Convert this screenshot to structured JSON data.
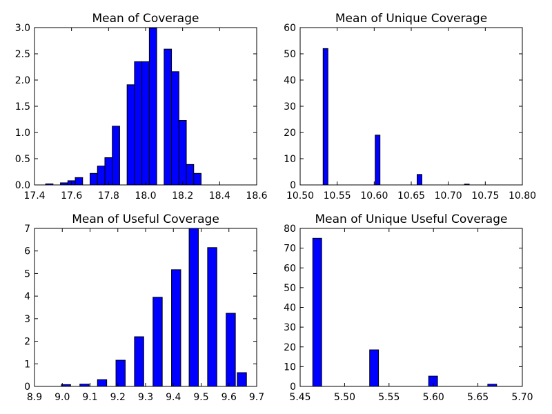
{
  "chart_data": [
    {
      "type": "bar",
      "title": "Mean of Coverage",
      "xlim": [
        17.4,
        18.6
      ],
      "ylim": [
        0,
        3.0
      ],
      "xticks": [
        17.4,
        17.6,
        17.8,
        18.0,
        18.2,
        18.4,
        18.6
      ],
      "xtick_labels": [
        "17.4",
        "17.6",
        "17.8",
        "18.0",
        "18.2",
        "18.4",
        "18.6"
      ],
      "yticks": [
        0,
        0.5,
        1.0,
        1.5,
        2.0,
        2.5,
        3.0
      ],
      "ytick_labels": [
        "0.0",
        "0.5",
        "1.0",
        "1.5",
        "2.0",
        "2.5",
        "3.0"
      ],
      "bin_width": 0.04,
      "bin_starts": [
        17.46,
        17.5,
        17.54,
        17.58,
        17.62,
        17.66,
        17.7,
        17.74,
        17.78,
        17.82,
        17.86,
        17.9,
        17.94,
        17.98,
        18.02,
        18.06,
        18.1,
        18.14,
        18.18,
        18.22,
        18.26,
        18.3,
        18.34,
        18.38,
        18.42,
        18.46,
        18.5
      ],
      "values": [
        0.02,
        0,
        0.04,
        0.08,
        0.14,
        0,
        0.22,
        0.36,
        0.52,
        1.12,
        0,
        1.91,
        2.35,
        2.35,
        2.99,
        0,
        2.59,
        2.16,
        1.23,
        0.39,
        0.22,
        0,
        0,
        0,
        0,
        0,
        0
      ],
      "xlabel": "",
      "ylabel": ""
    },
    {
      "type": "bar",
      "title": "Mean of Unique Coverage",
      "xlim": [
        10.5,
        10.8
      ],
      "ylim": [
        0,
        60
      ],
      "xticks": [
        10.5,
        10.55,
        10.6,
        10.65,
        10.7,
        10.75,
        10.8
      ],
      "xtick_labels": [
        "10.50",
        "10.55",
        "10.60",
        "10.65",
        "10.70",
        "10.75",
        "10.80"
      ],
      "yticks": [
        0,
        10,
        20,
        30,
        40,
        50,
        60
      ],
      "ytick_labels": [
        "0",
        "10",
        "20",
        "30",
        "40",
        "50",
        "60"
      ],
      "bin_width": 0.0065,
      "bin_starts": [
        10.531,
        10.6013,
        10.6579,
        10.7218
      ],
      "values": [
        52,
        19,
        4,
        0.3
      ],
      "xlabel": "",
      "ylabel": ""
    },
    {
      "type": "bar",
      "title": "Mean of Useful Coverage",
      "xlim": [
        8.9,
        9.7
      ],
      "ylim": [
        0,
        7
      ],
      "xticks": [
        8.9,
        9.0,
        9.1,
        9.2,
        9.3,
        9.4,
        9.5,
        9.6,
        9.7
      ],
      "xtick_labels": [
        "8.9",
        "9.0",
        "9.1",
        "9.2",
        "9.3",
        "9.4",
        "9.5",
        "9.6",
        "9.7"
      ],
      "yticks": [
        0,
        1,
        2,
        3,
        4,
        5,
        6,
        7
      ],
      "ytick_labels": [
        "0",
        "1",
        "2",
        "3",
        "4",
        "5",
        "6",
        "7"
      ],
      "bin_width": 0.0333,
      "bin_starts": [
        8.9967,
        9.0633,
        9.1267,
        9.1933,
        9.26,
        9.3267,
        9.3933,
        9.4567,
        9.5233,
        9.59,
        9.63
      ],
      "values": [
        0.08,
        0.1,
        0.3,
        1.16,
        2.2,
        3.95,
        5.17,
        7.0,
        6.15,
        3.24,
        0.61
      ],
      "xlabel": "",
      "ylabel": ""
    },
    {
      "type": "bar",
      "title": "Mean of Unique Useful Coverage",
      "xlim": [
        5.45,
        5.7
      ],
      "ylim": [
        0,
        80
      ],
      "xticks": [
        5.45,
        5.5,
        5.55,
        5.6,
        5.65,
        5.7
      ],
      "xtick_labels": [
        "5.45",
        "5.50",
        "5.55",
        "5.60",
        "5.65",
        "5.70"
      ],
      "yticks": [
        0,
        10,
        20,
        30,
        40,
        50,
        60,
        70,
        80
      ],
      "ytick_labels": [
        "0",
        "10",
        "20",
        "30",
        "40",
        "50",
        "60",
        "70",
        "80"
      ],
      "bin_width": 0.01,
      "bin_starts": [
        5.4642,
        5.5282,
        5.5946,
        5.6611
      ],
      "values": [
        75,
        18.5,
        5.2,
        1.1
      ],
      "xlabel": "",
      "ylabel": ""
    }
  ]
}
